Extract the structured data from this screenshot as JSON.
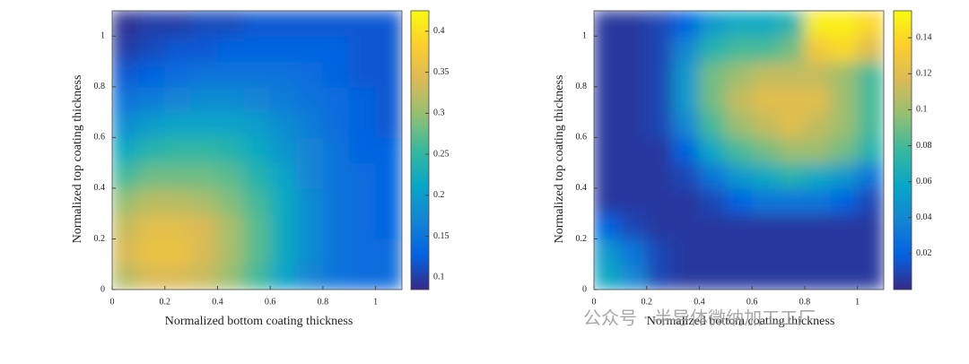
{
  "chart_data": [
    {
      "type": "heatmap",
      "xlabel": "Normalized  bottom coating thickness",
      "ylabel": "Normalized  top coating thickness",
      "x": [
        0.05,
        0.15,
        0.25,
        0.35,
        0.45,
        0.55,
        0.65,
        0.75,
        0.85,
        0.95,
        1.05
      ],
      "y": [
        0.05,
        0.15,
        0.25,
        0.35,
        0.45,
        0.55,
        0.65,
        0.75,
        0.85,
        0.95,
        1.05
      ],
      "z": [
        [
          0.32,
          0.34,
          0.34,
          0.33,
          0.3,
          0.26,
          0.21,
          0.17,
          0.15,
          0.14,
          0.14
        ],
        [
          0.34,
          0.36,
          0.36,
          0.34,
          0.31,
          0.27,
          0.22,
          0.18,
          0.15,
          0.14,
          0.14
        ],
        [
          0.33,
          0.35,
          0.35,
          0.34,
          0.31,
          0.27,
          0.22,
          0.18,
          0.15,
          0.14,
          0.13
        ],
        [
          0.3,
          0.32,
          0.32,
          0.31,
          0.29,
          0.26,
          0.22,
          0.18,
          0.15,
          0.14,
          0.13
        ],
        [
          0.26,
          0.28,
          0.28,
          0.28,
          0.27,
          0.24,
          0.21,
          0.17,
          0.15,
          0.14,
          0.13
        ],
        [
          0.22,
          0.24,
          0.25,
          0.25,
          0.24,
          0.22,
          0.19,
          0.17,
          0.15,
          0.13,
          0.13
        ],
        [
          0.18,
          0.2,
          0.21,
          0.21,
          0.21,
          0.2,
          0.18,
          0.16,
          0.14,
          0.13,
          0.12
        ],
        [
          0.15,
          0.16,
          0.17,
          0.18,
          0.18,
          0.17,
          0.16,
          0.15,
          0.14,
          0.13,
          0.12
        ],
        [
          0.12,
          0.13,
          0.14,
          0.15,
          0.15,
          0.15,
          0.15,
          0.14,
          0.13,
          0.12,
          0.12
        ],
        [
          0.1,
          0.11,
          0.12,
          0.12,
          0.13,
          0.13,
          0.13,
          0.13,
          0.13,
          0.12,
          0.12
        ],
        [
          0.09,
          0.1,
          0.1,
          0.11,
          0.11,
          0.12,
          0.12,
          0.12,
          0.12,
          0.12,
          0.12
        ]
      ],
      "xlim": [
        0,
        1.1
      ],
      "ylim": [
        0,
        1.1
      ],
      "xticks": [
        0,
        0.2,
        0.4,
        0.6,
        0.8,
        1
      ],
      "yticks": [
        0,
        0.2,
        0.4,
        0.6,
        0.8,
        1
      ],
      "clim": [
        0.085,
        0.425
      ],
      "cticks": [
        0.1,
        0.15,
        0.2,
        0.25,
        0.3,
        0.35,
        0.4
      ],
      "colormap": "parula"
    },
    {
      "type": "heatmap",
      "xlabel": "Normalized  bottom coating thickness",
      "ylabel": "Normalized  top coating thickness",
      "x": [
        0.05,
        0.15,
        0.25,
        0.35,
        0.45,
        0.55,
        0.65,
        0.75,
        0.85,
        0.95,
        1.05
      ],
      "y": [
        0.05,
        0.15,
        0.25,
        0.35,
        0.45,
        0.55,
        0.65,
        0.75,
        0.85,
        0.95,
        1.05
      ],
      "z": [
        [
          0.06,
          0.04,
          0.01,
          0.005,
          0.005,
          0.005,
          0.005,
          0.005,
          0.005,
          0.005,
          0.005
        ],
        [
          0.05,
          0.03,
          0.01,
          0.005,
          0.005,
          0.005,
          0.005,
          0.005,
          0.005,
          0.005,
          0.005
        ],
        [
          0.02,
          0.01,
          0.005,
          0.005,
          0.005,
          0.005,
          0.005,
          0.005,
          0.005,
          0.005,
          0.005
        ],
        [
          0.005,
          0.005,
          0.005,
          0.005,
          0.01,
          0.02,
          0.03,
          0.03,
          0.03,
          0.02,
          0.01
        ],
        [
          0.005,
          0.005,
          0.005,
          0.01,
          0.03,
          0.05,
          0.06,
          0.07,
          0.06,
          0.05,
          0.03
        ],
        [
          0.005,
          0.005,
          0.005,
          0.02,
          0.06,
          0.08,
          0.09,
          0.1,
          0.1,
          0.09,
          0.07
        ],
        [
          0.005,
          0.005,
          0.01,
          0.04,
          0.08,
          0.1,
          0.11,
          0.12,
          0.11,
          0.1,
          0.08
        ],
        [
          0.005,
          0.005,
          0.01,
          0.05,
          0.09,
          0.11,
          0.12,
          0.12,
          0.12,
          0.1,
          0.08
        ],
        [
          0.005,
          0.005,
          0.01,
          0.05,
          0.09,
          0.1,
          0.11,
          0.11,
          0.11,
          0.1,
          0.08
        ],
        [
          0.005,
          0.005,
          0.01,
          0.04,
          0.07,
          0.08,
          0.08,
          0.09,
          0.13,
          0.14,
          0.12
        ],
        [
          0.005,
          0.005,
          0.01,
          0.02,
          0.05,
          0.06,
          0.06,
          0.07,
          0.15,
          0.15,
          0.14
        ]
      ],
      "xlim": [
        0,
        1.1
      ],
      "ylim": [
        0,
        1.1
      ],
      "xticks": [
        0,
        0.2,
        0.4,
        0.6,
        0.8,
        1
      ],
      "yticks": [
        0,
        0.2,
        0.4,
        0.6,
        0.8,
        1
      ],
      "clim": [
        0,
        0.155
      ],
      "cticks": [
        0.02,
        0.04,
        0.06,
        0.08,
        0.1,
        0.12,
        0.14
      ],
      "colormap": "parula"
    }
  ],
  "watermark": "公众号 · 半导体微纳加工工厂"
}
